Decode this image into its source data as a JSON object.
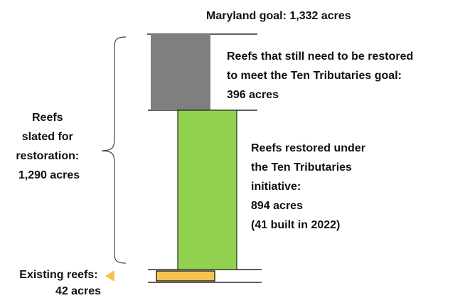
{
  "chart_data": {
    "type": "bar",
    "orientation": "stacked-column",
    "segments": [
      {
        "name": "Existing reefs",
        "value": 42,
        "color": "#f5c44e",
        "label_lines": [
          "Existing reefs:",
          "42 acres"
        ]
      },
      {
        "name": "Reefs restored under the Ten Tributaries initiative",
        "value": 894,
        "color": "#92d050",
        "label_lines": [
          "Reefs restored under",
          "the Ten Tributaries",
          "initiative:",
          "894 acres",
          "(41 built in 2022)"
        ]
      },
      {
        "name": "Reefs that still need to be restored to meet the Ten Tributaries goal",
        "value": 396,
        "color": "#7f7f7f",
        "label_lines": [
          "Reefs that still need to be restored",
          "to meet the Ten Tributaries goal:",
          "396 acres"
        ]
      }
    ],
    "goal": {
      "value": 1332,
      "label": "Maryland goal: 1,332 acres"
    },
    "bracket": {
      "value": 1290,
      "label_lines": [
        "Reefs",
        "slated for",
        "restoration:",
        "1,290 acres"
      ]
    },
    "bar_border_color": "#000000",
    "arrow_color": "#f5c44e"
  }
}
